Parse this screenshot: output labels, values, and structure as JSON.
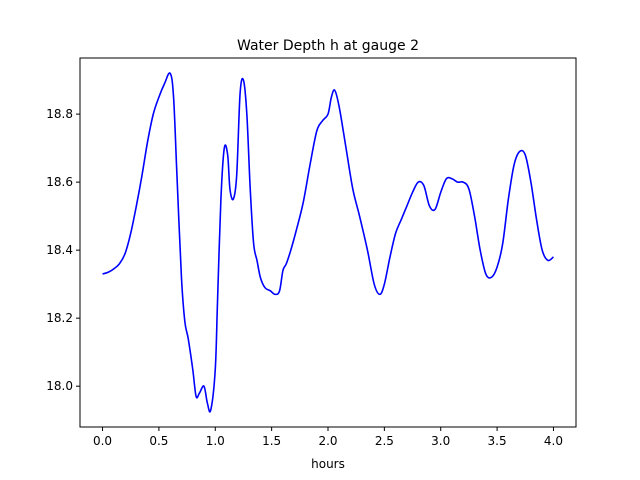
{
  "chart_data": {
    "type": "line",
    "title": "Water Depth h at gauge 2",
    "xlabel": "hours",
    "ylabel": "",
    "xlim": [
      -0.2,
      4.2
    ],
    "ylim": [
      17.88,
      18.965
    ],
    "xticks": [
      0.0,
      0.5,
      1.0,
      1.5,
      2.0,
      2.5,
      3.0,
      3.5,
      4.0
    ],
    "xtick_labels": [
      "0.0",
      "0.5",
      "1.0",
      "1.5",
      "2.0",
      "2.5",
      "3.0",
      "3.5",
      "4.0"
    ],
    "yticks": [
      18.0,
      18.2,
      18.4,
      18.6,
      18.8
    ],
    "ytick_labels": [
      "18.0",
      "18.2",
      "18.4",
      "18.6",
      "18.8"
    ],
    "grid": false,
    "legend": "none",
    "series": [
      {
        "color": "#0000ff",
        "x": [
          0.0,
          0.05,
          0.1,
          0.15,
          0.2,
          0.25,
          0.3,
          0.35,
          0.4,
          0.45,
          0.5,
          0.55,
          0.6,
          0.63,
          0.66,
          0.7,
          0.73,
          0.76,
          0.8,
          0.83,
          0.86,
          0.9,
          0.93,
          0.96,
          1.0,
          1.02,
          1.05,
          1.08,
          1.11,
          1.13,
          1.16,
          1.19,
          1.22,
          1.25,
          1.28,
          1.31,
          1.34,
          1.37,
          1.4,
          1.44,
          1.49,
          1.53,
          1.57,
          1.6,
          1.63,
          1.67,
          1.72,
          1.78,
          1.84,
          1.9,
          1.95,
          2.0,
          2.03,
          2.06,
          2.1,
          2.16,
          2.22,
          2.28,
          2.35,
          2.41,
          2.46,
          2.5,
          2.55,
          2.6,
          2.65,
          2.7,
          2.75,
          2.8,
          2.85,
          2.9,
          2.95,
          3.0,
          3.05,
          3.1,
          3.15,
          3.2,
          3.25,
          3.3,
          3.35,
          3.4,
          3.45,
          3.5,
          3.55,
          3.6,
          3.65,
          3.7,
          3.75,
          3.8,
          3.85,
          3.9,
          3.95,
          4.0
        ],
        "y": [
          18.33,
          18.335,
          18.345,
          18.36,
          18.39,
          18.45,
          18.53,
          18.62,
          18.72,
          18.8,
          18.85,
          18.89,
          18.92,
          18.85,
          18.62,
          18.32,
          18.19,
          18.14,
          18.05,
          17.97,
          17.98,
          18.0,
          17.95,
          17.93,
          18.05,
          18.25,
          18.55,
          18.7,
          18.68,
          18.58,
          18.55,
          18.62,
          18.86,
          18.9,
          18.8,
          18.58,
          18.42,
          18.37,
          18.32,
          18.29,
          18.28,
          18.27,
          18.28,
          18.34,
          18.36,
          18.4,
          18.46,
          18.54,
          18.65,
          18.75,
          18.78,
          18.8,
          18.85,
          18.87,
          18.82,
          18.7,
          18.58,
          18.5,
          18.4,
          18.3,
          18.27,
          18.3,
          18.38,
          18.45,
          18.49,
          18.53,
          18.57,
          18.6,
          18.59,
          18.53,
          18.52,
          18.57,
          18.61,
          18.61,
          18.6,
          18.6,
          18.58,
          18.5,
          18.4,
          18.33,
          18.32,
          18.35,
          18.42,
          18.55,
          18.65,
          18.69,
          18.68,
          18.6,
          18.49,
          18.4,
          18.37,
          18.38
        ]
      }
    ]
  }
}
